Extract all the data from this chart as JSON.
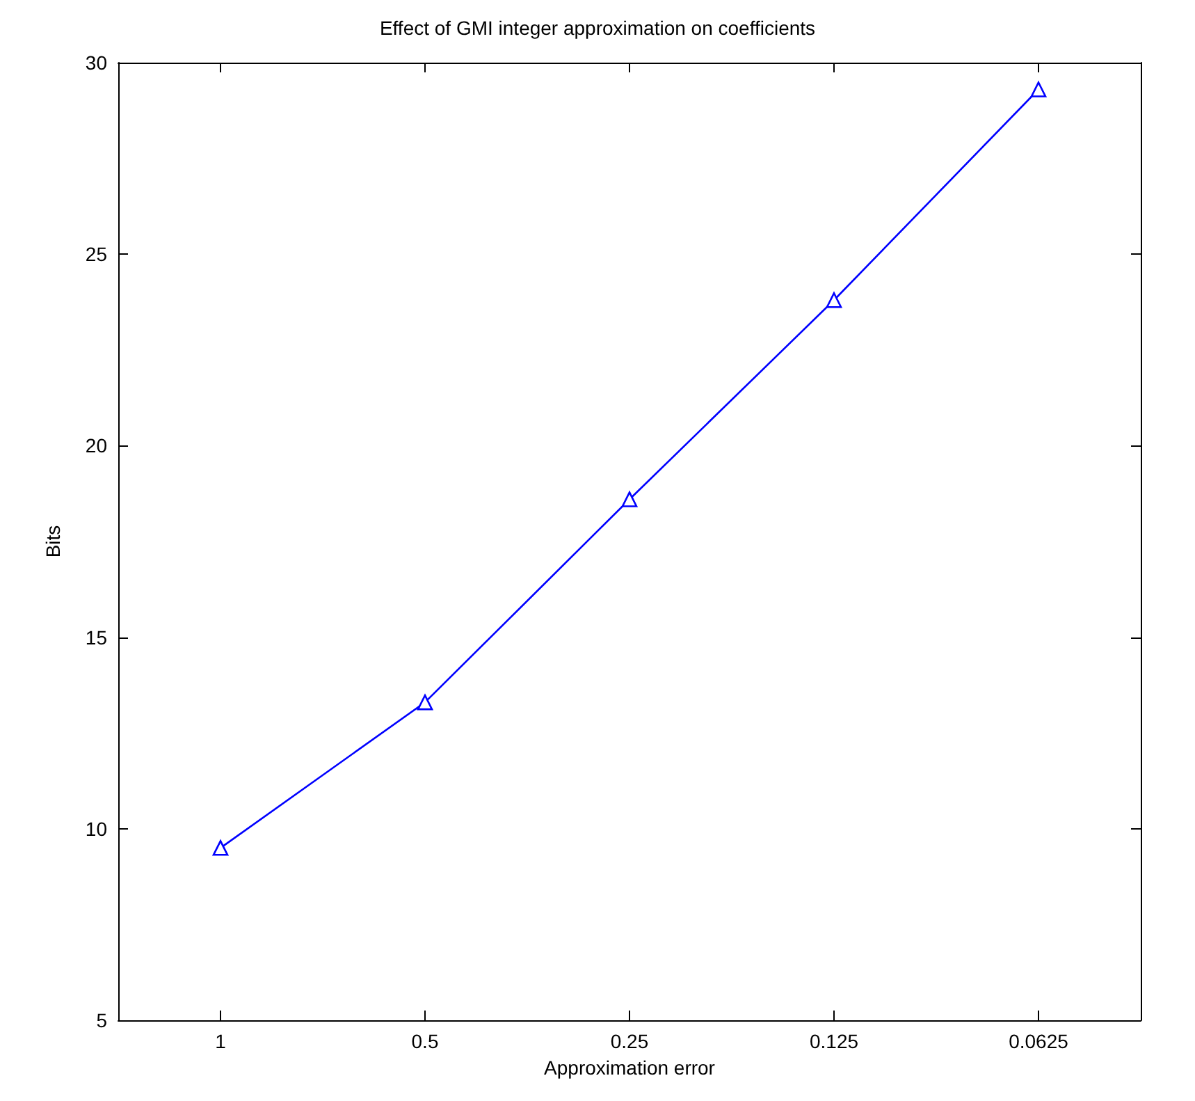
{
  "chart_data": {
    "type": "line",
    "title": "Effect of GMI integer approximation on coefficients",
    "xlabel": "Approximation error",
    "ylabel": "Bits",
    "categories": [
      "1",
      "0.5",
      "0.25",
      "0.125",
      "0.0625"
    ],
    "series": [
      {
        "color": "#0000ff",
        "values": [
          9.5,
          13.3,
          18.6,
          23.8,
          29.3
        ]
      }
    ],
    "ylim": [
      5,
      30
    ],
    "yticks": [
      5,
      10,
      15,
      20,
      25,
      30
    ],
    "marker": "triangle",
    "line_style": "solid",
    "grid": false
  }
}
